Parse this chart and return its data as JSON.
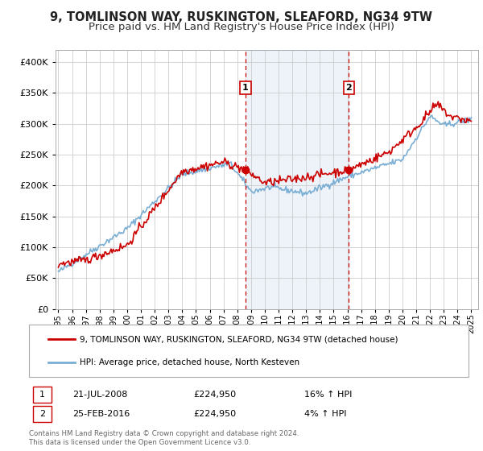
{
  "title": "9, TOMLINSON WAY, RUSKINGTON, SLEAFORD, NG34 9TW",
  "subtitle": "Price paid vs. HM Land Registry's House Price Index (HPI)",
  "legend_label_red": "9, TOMLINSON WAY, RUSKINGTON, SLEAFORD, NG34 9TW (detached house)",
  "legend_label_blue": "HPI: Average price, detached house, North Kesteven",
  "annotation1_label": "1",
  "annotation1_date": "21-JUL-2008",
  "annotation1_price": "£224,950",
  "annotation1_hpi": "16% ↑ HPI",
  "annotation2_label": "2",
  "annotation2_date": "25-FEB-2016",
  "annotation2_price": "£224,950",
  "annotation2_hpi": "4% ↑ HPI",
  "footnote1": "Contains HM Land Registry data © Crown copyright and database right 2024.",
  "footnote2": "This data is licensed under the Open Government Licence v3.0.",
  "vline1_x": 2008.6,
  "vline2_x": 2016.1,
  "marker1_x": 2008.6,
  "marker1_y": 224950,
  "marker2_x": 2016.1,
  "marker2_y": 224950,
  "ylim": [
    0,
    420000
  ],
  "xlim": [
    1994.8,
    2025.5
  ],
  "background_color": "#ffffff",
  "plot_bg_color": "#ffffff",
  "shade_color": "#ccdff0",
  "grid_color": "#cccccc",
  "red_color": "#cc0000",
  "blue_color": "#7aaed4",
  "title_fontsize": 10.5,
  "subtitle_fontsize": 9.5
}
